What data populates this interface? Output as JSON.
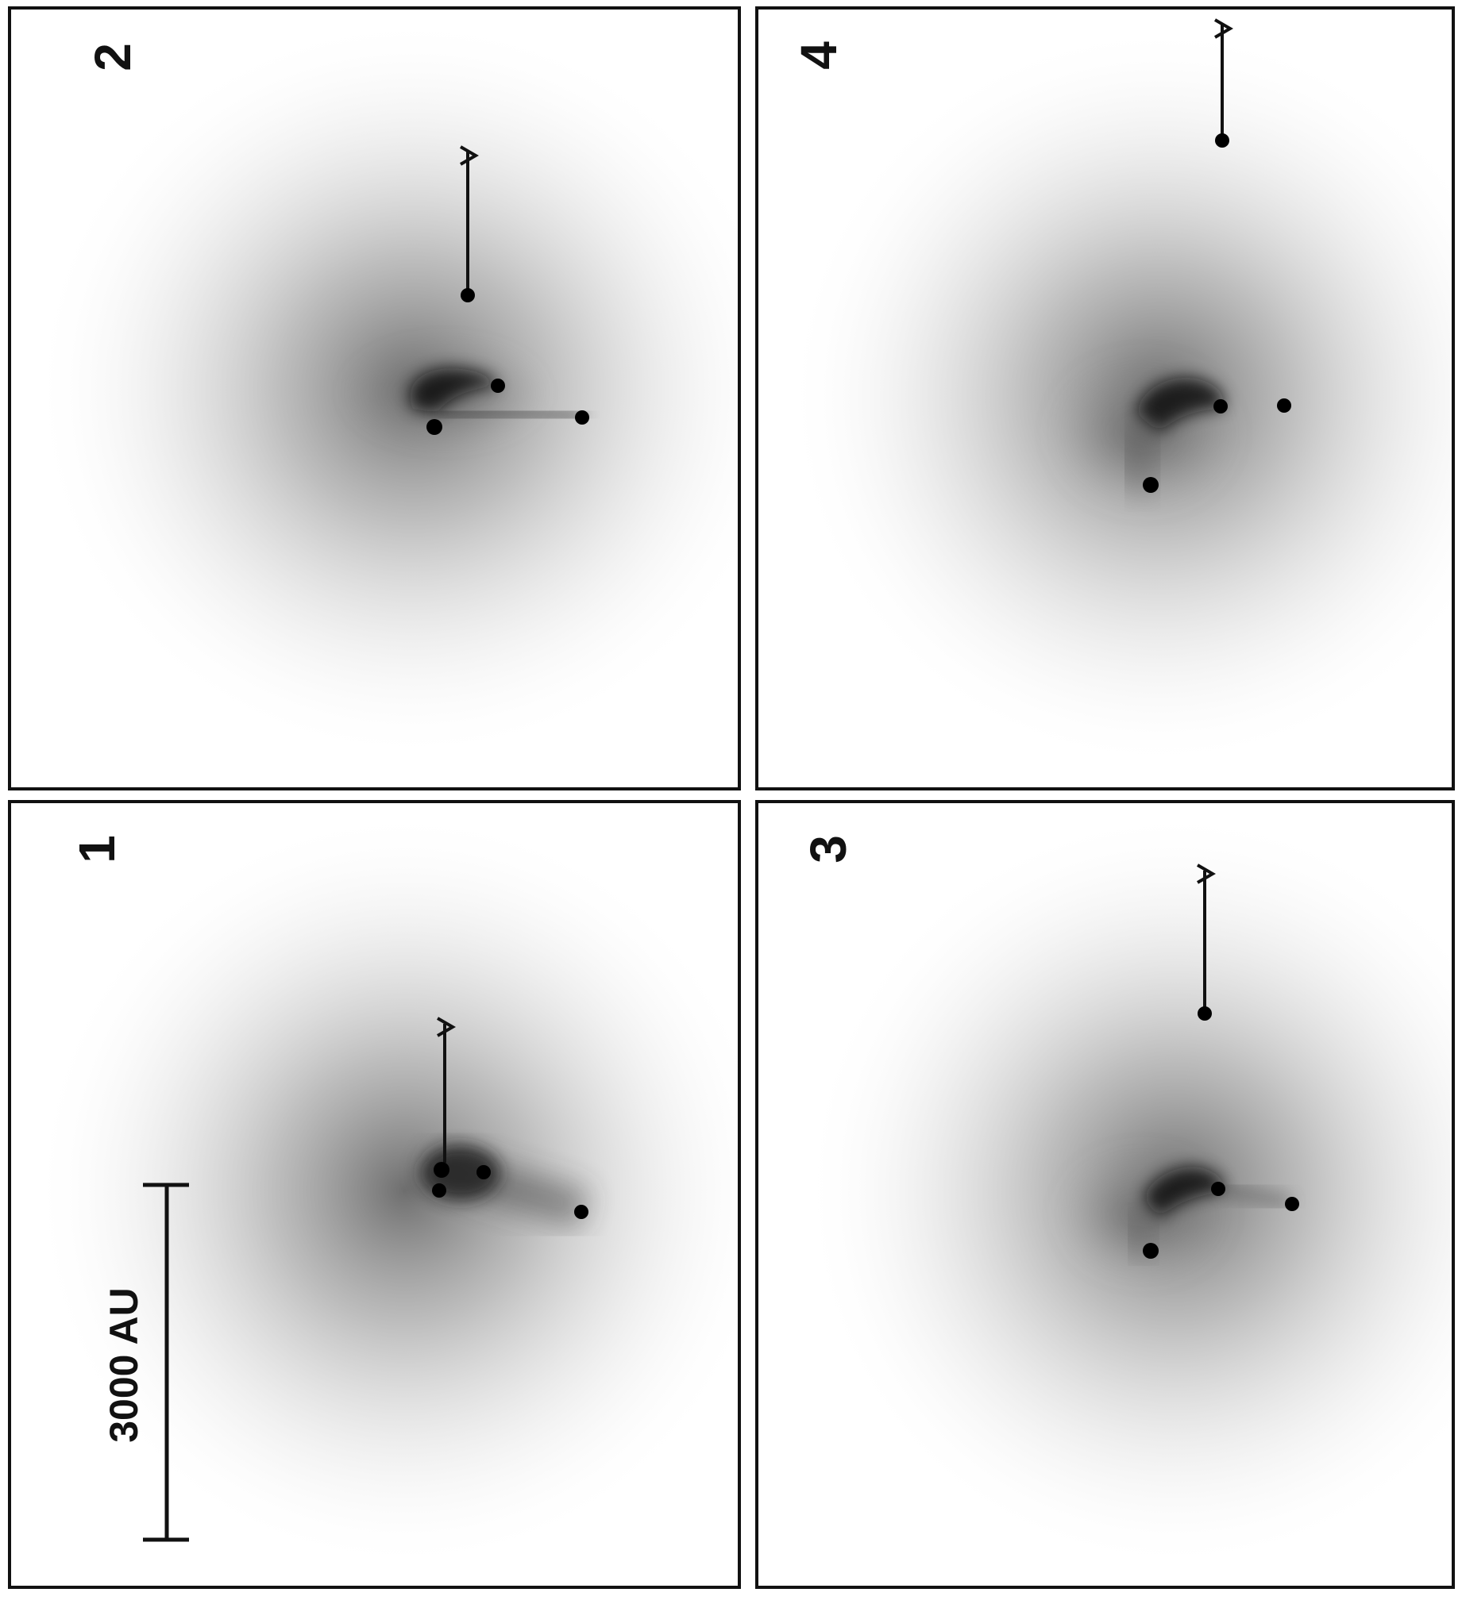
{
  "figure": {
    "panel_labels": [
      "1",
      "2",
      "3",
      "4"
    ],
    "scale_bar_label": "3000 AU",
    "colors": {
      "background": "#ffffff",
      "ink": "#111111",
      "gas_dark": "#1a1a1a"
    }
  }
}
